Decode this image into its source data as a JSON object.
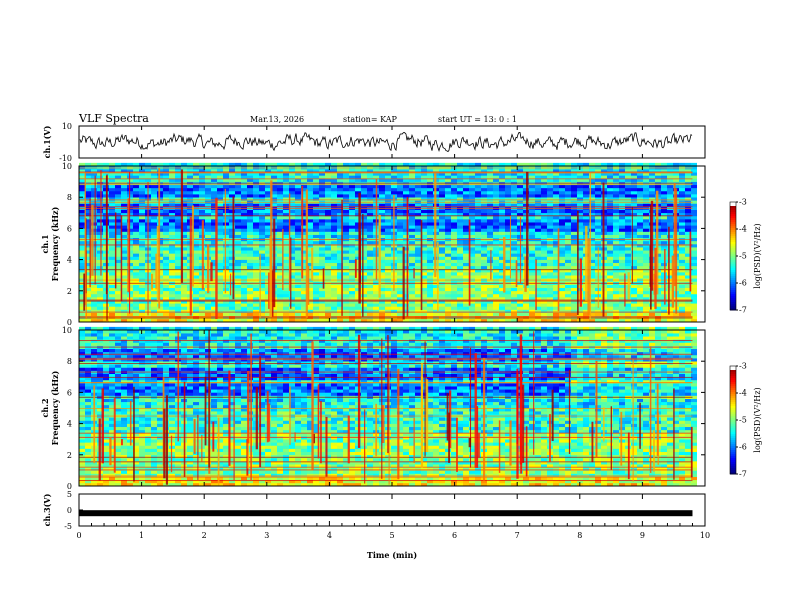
{
  "header": {
    "title": "VLF Spectra",
    "date": "Mar.13, 2026",
    "station": "station= KAP",
    "start_time": "start  UT =   13: 0  : 1"
  },
  "chart_data": [
    {
      "type": "line",
      "name": "ch1-waveform",
      "ylabel": "ch.1(V)",
      "ylim": [
        -10,
        10
      ],
      "yticks": [
        10,
        -10
      ],
      "xlim": [
        0,
        10
      ],
      "trace_range_minutes": [
        0,
        9.8
      ],
      "approx_amplitude_V": 3
    },
    {
      "type": "heatmap",
      "name": "ch1-spectrogram",
      "ylabel_line1": "ch.1",
      "ylabel_line2": "Frequency (kHz)",
      "ylim": [
        0,
        10
      ],
      "yticks": [
        0,
        2,
        4,
        6,
        8,
        10
      ],
      "xlim": [
        0,
        10
      ],
      "colorbar": {
        "label": "log(PSD)(V²/Hz)",
        "range": [
          -7,
          -3
        ],
        "ticks": [
          -3,
          -4,
          -5,
          -6,
          -7
        ]
      }
    },
    {
      "type": "heatmap",
      "name": "ch2-spectrogram",
      "ylabel_line1": "ch.2",
      "ylabel_line2": "Frequency (kHz)",
      "ylim": [
        0,
        10
      ],
      "yticks": [
        0,
        2,
        4,
        6,
        8,
        10
      ],
      "xlim": [
        0,
        10
      ],
      "colorbar": {
        "label": "log(PSD)(V²/Hz)",
        "range": [
          -7,
          -3
        ],
        "ticks": [
          -3,
          -4,
          -5,
          -6,
          -7
        ]
      }
    },
    {
      "type": "line",
      "name": "ch3-signal",
      "ylabel": "ch.3(V)",
      "ylim": [
        -5,
        5
      ],
      "yticks": [
        5,
        0,
        -5
      ],
      "yticklabels": [
        "5",
        "0",
        "-5"
      ],
      "approx_level_V": -1,
      "xlim": [
        0,
        10
      ],
      "xticks": [
        0,
        1,
        2,
        3,
        4,
        5,
        6,
        7,
        8,
        9,
        10
      ],
      "xlabel": "Time  (min)"
    }
  ],
  "colors": {
    "trace": "#000000",
    "spectrogram_background": "#33e08a"
  }
}
